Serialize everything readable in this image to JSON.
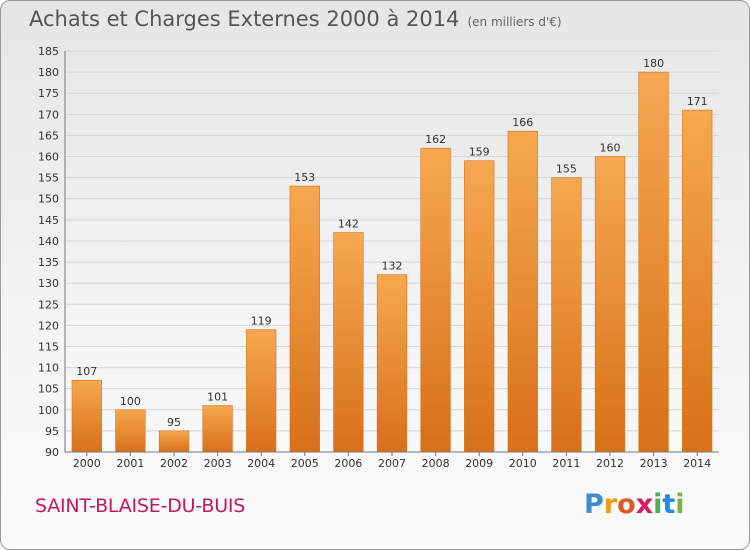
{
  "header": {
    "title": "Achats et Charges Externes 2000 à 2014",
    "subtitle": "(en milliers d'€)"
  },
  "footer": {
    "place": "SAINT-BLAISE-DU-BUIS",
    "logo": [
      "P",
      "r",
      "o",
      "x",
      "i",
      "t",
      "i"
    ],
    "logo_colors": [
      "#3b8fd0",
      "#e8a01c",
      "#e05a1f",
      "#d81b60",
      "#4caf50",
      "#1e88e5",
      "#7cb342"
    ]
  },
  "chart_data": {
    "type": "bar",
    "title": "Achats et Charges Externes 2000 à 2014",
    "subtitle": "(en milliers d'€)",
    "categories": [
      "2000",
      "2001",
      "2002",
      "2003",
      "2004",
      "2005",
      "2006",
      "2007",
      "2008",
      "2009",
      "2010",
      "2011",
      "2012",
      "2013",
      "2014"
    ],
    "values": [
      107,
      100,
      95,
      101,
      119,
      153,
      142,
      132,
      162,
      159,
      166,
      155,
      160,
      180,
      171
    ],
    "ylim": [
      90,
      185
    ],
    "yticks": [
      90,
      95,
      100,
      105,
      110,
      115,
      120,
      125,
      130,
      135,
      140,
      145,
      150,
      155,
      160,
      165,
      170,
      175,
      180,
      185
    ],
    "grid": true,
    "bar_color": "#f0892a"
  }
}
